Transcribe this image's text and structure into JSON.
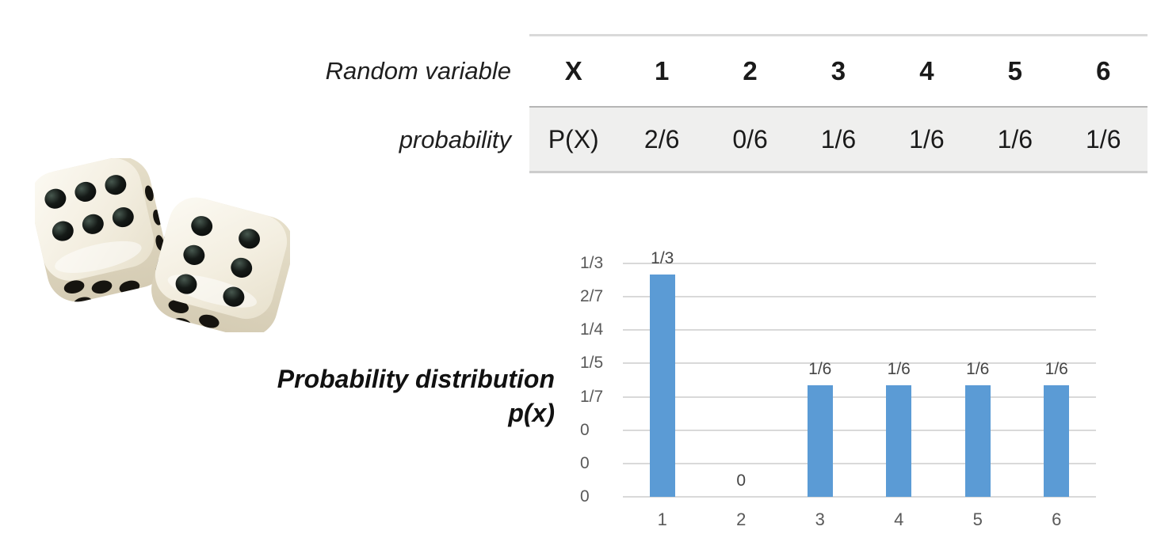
{
  "dice": {
    "left_die_top_face": 6,
    "right_die_top_face": 6
  },
  "table": {
    "row_labels": {
      "random_variable": "Random variable",
      "probability": "probability"
    },
    "header_cells": [
      "X",
      "1",
      "2",
      "3",
      "4",
      "5",
      "6"
    ],
    "value_cells": [
      "P(X)",
      "2/6",
      "0/6",
      "1/6",
      "1/6",
      "1/6",
      "1/6"
    ]
  },
  "chart": {
    "title_line1": "Probability distribution",
    "title_line2": "p(x)"
  },
  "chart_data": {
    "type": "bar",
    "title": "Probability distribution p(x)",
    "categories": [
      "1",
      "2",
      "3",
      "4",
      "5",
      "6"
    ],
    "values": [
      0.3333,
      0,
      0.1667,
      0.1667,
      0.1667,
      0.1667
    ],
    "value_labels": [
      "1/3",
      "0",
      "1/6",
      "1/6",
      "1/6",
      "1/6"
    ],
    "y_tick_labels": [
      "1/3",
      "2/7",
      "1/4",
      "1/5",
      "1/7",
      "0",
      "0",
      "0"
    ],
    "ylim": [
      0,
      0.35
    ],
    "grid": true,
    "legend": false,
    "xlabel": "",
    "ylabel": "",
    "bar_color": "#5B9BD5"
  },
  "colors": {
    "bar_blue": "#5B9BD5",
    "gridline_gray": "#D9D9D9",
    "tick_text_gray": "#595959",
    "table_row_bg": "#EFEFEE"
  }
}
